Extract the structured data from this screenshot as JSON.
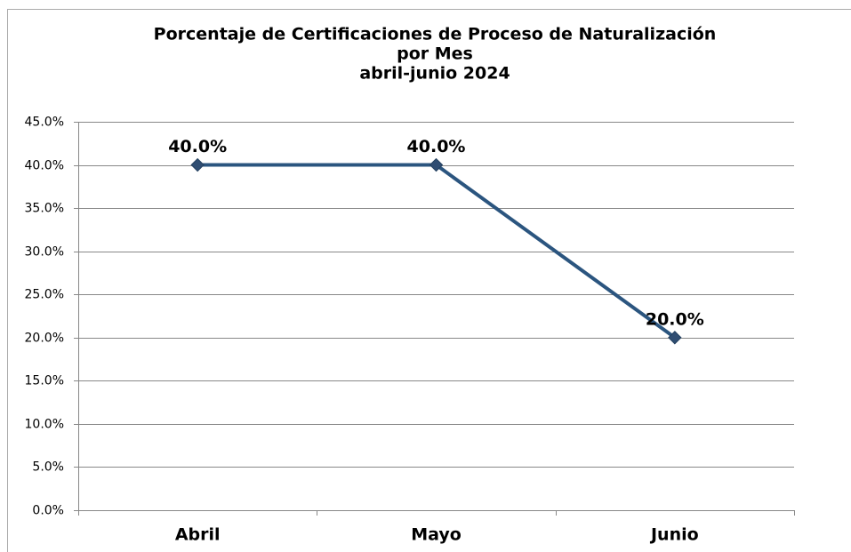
{
  "chart_data": {
    "type": "line",
    "title": [
      "Porcentaje de Certificaciones de Proceso de Naturalización",
      "por Mes",
      "abril-junio 2024"
    ],
    "categories": [
      "Abril",
      "Mayo",
      "Junio"
    ],
    "series": [
      {
        "name": "Porcentaje",
        "color": "#2b557f",
        "values": [
          40,
          40,
          20
        ],
        "value_labels": [
          "40.0%",
          "40.0%",
          "20.0%"
        ]
      }
    ],
    "ylim": [
      0,
      45
    ],
    "yticks": [
      {
        "value": 0,
        "label": "0.0%"
      },
      {
        "value": 5,
        "label": "5.0%"
      },
      {
        "value": 10,
        "label": "10.0%"
      },
      {
        "value": 15,
        "label": "15.0%"
      },
      {
        "value": 20,
        "label": "20.0%"
      },
      {
        "value": 25,
        "label": "25.0%"
      },
      {
        "value": 30,
        "label": "30.0%"
      },
      {
        "value": 35,
        "label": "35.0%"
      },
      {
        "value": 40,
        "label": "40.0%"
      },
      {
        "value": 45,
        "label": "45.0%"
      }
    ],
    "grid": true
  }
}
